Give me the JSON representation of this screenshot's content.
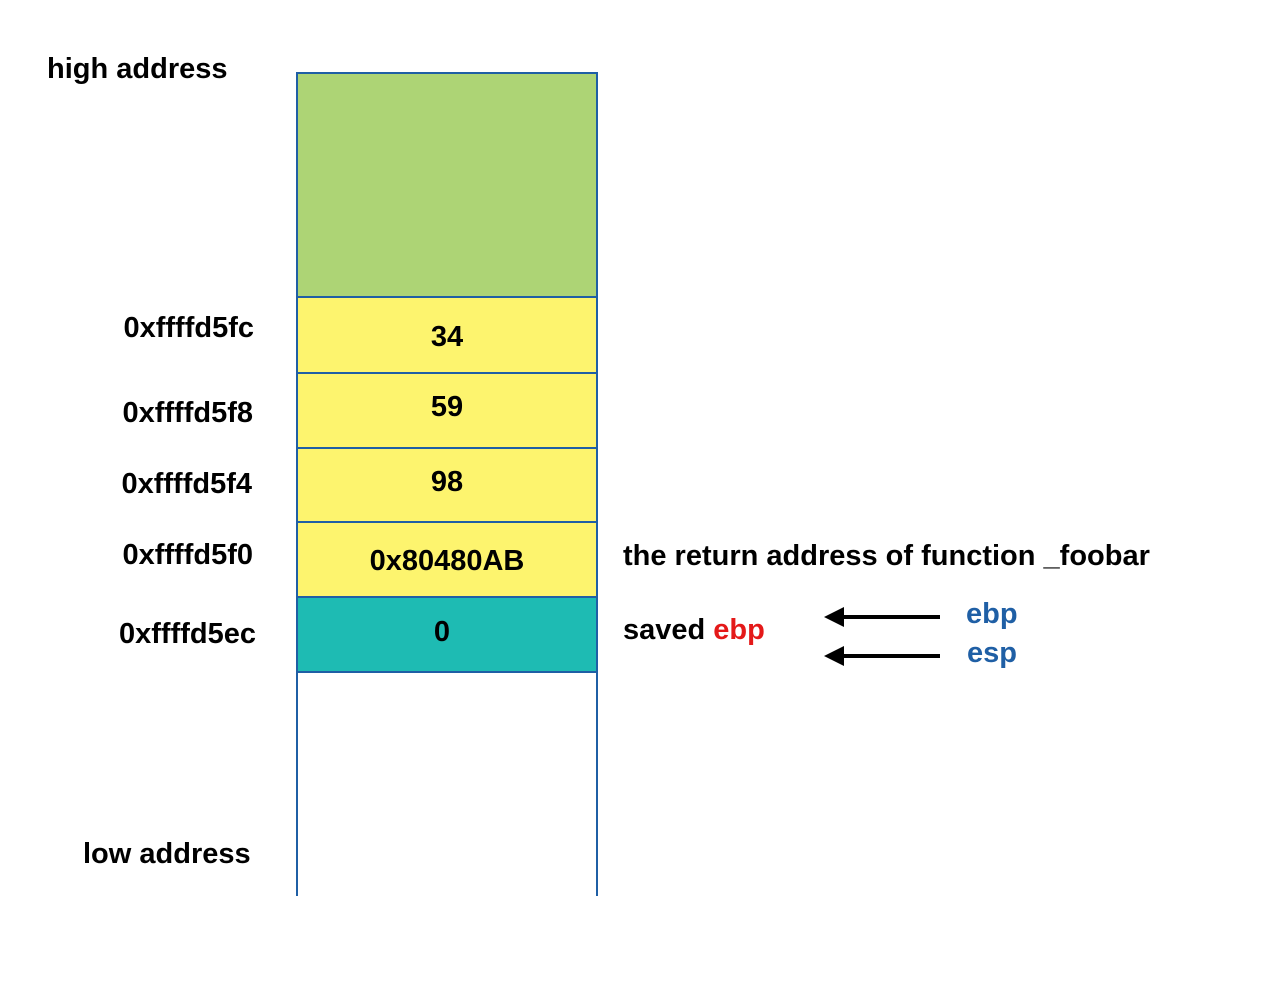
{
  "labels": {
    "high": "high address",
    "low": "low address"
  },
  "addresses": [
    "0xffffd5fc",
    "0xffffd5f8",
    "0xffffd5f4",
    "0xffffd5f0",
    "0xffffd5ec"
  ],
  "cells": [
    "34",
    "59",
    "98",
    "0x80480AB",
    "0"
  ],
  "annotations": {
    "return_address": "the return address of function _foobar",
    "saved_prefix": "saved",
    "saved_reg": "ebp"
  },
  "registers": {
    "ebp": "ebp",
    "esp": "esp"
  },
  "colors": {
    "frame_above": "#add475",
    "stack_value": "#fdf46e",
    "current_frame": "#1ebbb3",
    "border": "#1f5fa5",
    "register_text": "#1f5fa5",
    "highlight_text": "#e41919"
  }
}
